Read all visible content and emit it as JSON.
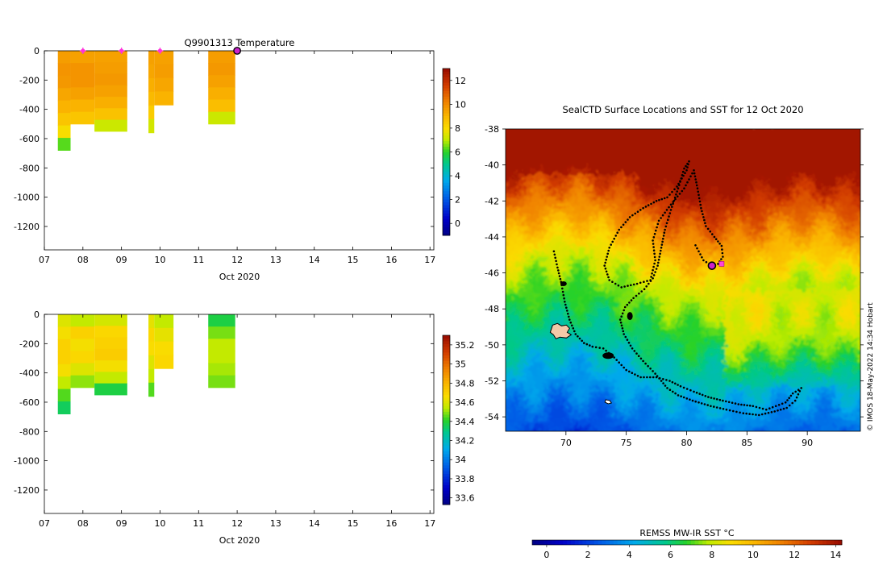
{
  "chart_data": [
    {
      "type": "heatmap",
      "title": "Q9901313  Temperature",
      "xlabel": "Oct 2020",
      "x_ticks": [
        "07",
        "08",
        "09",
        "10",
        "11",
        "12",
        "13",
        "14",
        "15",
        "16",
        "17"
      ],
      "y_ticks": [
        "0",
        "-200",
        "-400",
        "-600",
        "-800",
        "-1000",
        "-1200"
      ],
      "xlim": [
        7,
        17.1
      ],
      "ylim": [
        -1360,
        0
      ],
      "colorbar": {
        "ticks": [
          "0",
          "2",
          "4",
          "6",
          "8",
          "10",
          "12"
        ],
        "range": [
          -1,
          13
        ]
      },
      "profiles": [
        {
          "x0": 7.35,
          "x1": 7.68,
          "bottom": -680,
          "values": [
            9.6,
            9.8,
            9.7,
            9.4,
            9.1,
            8.6,
            7.9,
            6.3
          ]
        },
        {
          "x0": 7.68,
          "x1": 8.3,
          "bottom": -500,
          "values": [
            9.5,
            9.8,
            9.8,
            9.5,
            9.1,
            8.6
          ]
        },
        {
          "x0": 8.3,
          "x1": 9.15,
          "bottom": -550,
          "values": [
            9.5,
            9.6,
            9.7,
            9.5,
            9.2,
            8.7,
            7.2
          ]
        },
        {
          "x0": 9.7,
          "x1": 9.85,
          "bottom": -560,
          "values": [
            9.5,
            9.4,
            9.2,
            8.9,
            8.4,
            7.3
          ]
        },
        {
          "x0": 9.85,
          "x1": 10.35,
          "bottom": -370,
          "values": [
            9.5,
            9.6,
            9.4,
            9.1
          ]
        },
        {
          "x0": 11.25,
          "x1": 11.95,
          "bottom": -500,
          "values": [
            9.6,
            9.7,
            9.5,
            9.2,
            8.8,
            7.2
          ]
        }
      ],
      "markers": [
        {
          "x": 8.0,
          "style": "magenta-star"
        },
        {
          "x": 9.0,
          "style": "magenta-star"
        },
        {
          "x": 10.0,
          "style": "magenta-star"
        },
        {
          "x": 12.0,
          "style": "current-position"
        }
      ]
    },
    {
      "type": "heatmap",
      "xlabel": "Oct 2020",
      "x_ticks": [
        "07",
        "08",
        "09",
        "10",
        "11",
        "12",
        "13",
        "14",
        "15",
        "16",
        "17"
      ],
      "y_ticks": [
        "0",
        "-200",
        "-400",
        "-600",
        "-800",
        "-1000",
        "-1200"
      ],
      "xlim": [
        7,
        17.1
      ],
      "ylim": [
        -1360,
        0
      ],
      "colorbar": {
        "ticks": [
          "33.6",
          "33.8",
          "34",
          "34.2",
          "34.4",
          "34.6",
          "34.8",
          "35",
          "35.2"
        ],
        "range": [
          33.53,
          35.3
        ]
      },
      "profiles": [
        {
          "x0": 7.35,
          "x1": 7.68,
          "bottom": -680,
          "values": [
            34.6,
            34.65,
            34.7,
            34.7,
            34.65,
            34.55,
            34.45,
            34.35
          ]
        },
        {
          "x0": 7.68,
          "x1": 8.3,
          "bottom": -500,
          "values": [
            34.55,
            34.7,
            34.65,
            34.68,
            34.6,
            34.5
          ]
        },
        {
          "x0": 8.3,
          "x1": 9.15,
          "bottom": -550,
          "values": [
            34.58,
            34.68,
            34.7,
            34.72,
            34.65,
            34.55,
            34.38
          ]
        },
        {
          "x0": 9.7,
          "x1": 9.85,
          "bottom": -560,
          "values": [
            34.62,
            34.68,
            34.66,
            34.6,
            34.55,
            34.45
          ]
        },
        {
          "x0": 9.85,
          "x1": 10.35,
          "bottom": -370,
          "values": [
            34.55,
            34.62,
            34.66,
            34.68
          ]
        },
        {
          "x0": 11.25,
          "x1": 11.95,
          "bottom": -500,
          "values": [
            34.38,
            34.48,
            34.55,
            34.55,
            34.52,
            34.48
          ]
        }
      ]
    },
    {
      "type": "heatmap",
      "title": "SealCTD Surface Locations and SST for 12 Oct 2020",
      "x_ticks": [
        "70",
        "75",
        "80",
        "85",
        "90"
      ],
      "y_ticks": [
        "-38",
        "-40",
        "-42",
        "-44",
        "-46",
        "-48",
        "-50",
        "-52",
        "-54"
      ],
      "xlim": [
        65,
        94.4
      ],
      "ylim": [
        -54.8,
        -38
      ],
      "colorbar": {
        "label": "REMSS MW-IR SST °C",
        "ticks": [
          "0",
          "2",
          "4",
          "6",
          "8",
          "10",
          "12",
          "14"
        ],
        "range": [
          -0.7,
          14.3
        ]
      },
      "track": [
        [
          69.0,
          -44.8
        ],
        [
          69.3,
          -45.7
        ],
        [
          69.6,
          -46.5
        ],
        [
          69.9,
          -47.6
        ],
        [
          70.3,
          -48.6
        ],
        [
          70.8,
          -49.4
        ],
        [
          71.5,
          -49.9
        ],
        [
          72.2,
          -50.1
        ],
        [
          73.1,
          -50.2
        ],
        [
          74.0,
          -50.7
        ],
        [
          75.0,
          -51.4
        ],
        [
          76.2,
          -51.8
        ],
        [
          77.5,
          -51.8
        ],
        [
          78.6,
          -52.0
        ],
        [
          79.5,
          -52.3
        ],
        [
          80.6,
          -52.6
        ],
        [
          81.8,
          -52.9
        ],
        [
          83.0,
          -53.1
        ],
        [
          84.3,
          -53.3
        ],
        [
          85.5,
          -53.4
        ],
        [
          86.6,
          -53.6
        ],
        [
          87.4,
          -53.4
        ],
        [
          88.2,
          -53.2
        ],
        [
          88.8,
          -52.7
        ],
        [
          89.5,
          -52.4
        ],
        [
          89.0,
          -53.1
        ],
        [
          88.3,
          -53.5
        ],
        [
          87.3,
          -53.7
        ],
        [
          86.0,
          -53.9
        ],
        [
          84.7,
          -53.8
        ],
        [
          83.3,
          -53.6
        ],
        [
          82.0,
          -53.4
        ],
        [
          80.5,
          -53.1
        ],
        [
          79.3,
          -52.8
        ],
        [
          78.4,
          -52.4
        ],
        [
          77.4,
          -51.6
        ],
        [
          76.4,
          -50.9
        ],
        [
          75.5,
          -50.2
        ],
        [
          74.8,
          -49.4
        ],
        [
          74.5,
          -48.6
        ],
        [
          74.9,
          -47.9
        ],
        [
          75.6,
          -47.4
        ],
        [
          76.5,
          -46.9
        ],
        [
          77.2,
          -46.3
        ],
        [
          77.6,
          -45.6
        ],
        [
          77.9,
          -44.6
        ],
        [
          78.2,
          -43.6
        ],
        [
          78.7,
          -42.5
        ],
        [
          79.3,
          -41.3
        ],
        [
          79.8,
          -40.2
        ],
        [
          80.2,
          -39.8
        ],
        [
          80.0,
          -40.3
        ],
        [
          79.2,
          -41.2
        ],
        [
          78.4,
          -41.8
        ],
        [
          77.5,
          -42.0
        ],
        [
          76.4,
          -42.4
        ],
        [
          75.3,
          -42.9
        ],
        [
          74.4,
          -43.6
        ],
        [
          73.6,
          -44.6
        ],
        [
          73.2,
          -45.6
        ],
        [
          73.6,
          -46.4
        ],
        [
          74.6,
          -46.8
        ],
        [
          75.9,
          -46.6
        ],
        [
          77.0,
          -46.4
        ],
        [
          77.4,
          -45.3
        ],
        [
          77.2,
          -44.2
        ],
        [
          77.7,
          -43.1
        ],
        [
          78.7,
          -42.2
        ],
        [
          79.8,
          -41.3
        ],
        [
          80.6,
          -40.3
        ],
        [
          80.9,
          -41.3
        ],
        [
          81.2,
          -42.4
        ],
        [
          81.6,
          -43.4
        ],
        [
          82.3,
          -44.0
        ],
        [
          82.9,
          -44.5
        ],
        [
          83.0,
          -45.1
        ],
        [
          82.6,
          -45.5
        ],
        [
          82.1,
          -45.6
        ],
        [
          81.4,
          -45.3
        ],
        [
          81.0,
          -44.8
        ],
        [
          80.6,
          -44.3
        ]
      ],
      "current_position": {
        "lon": 82.1,
        "lat": -45.6
      },
      "current_tag": {
        "lon": 82.9,
        "lat": -45.5
      }
    }
  ],
  "credit": "© IMOS 18-May-2022 14:34 Hobart"
}
